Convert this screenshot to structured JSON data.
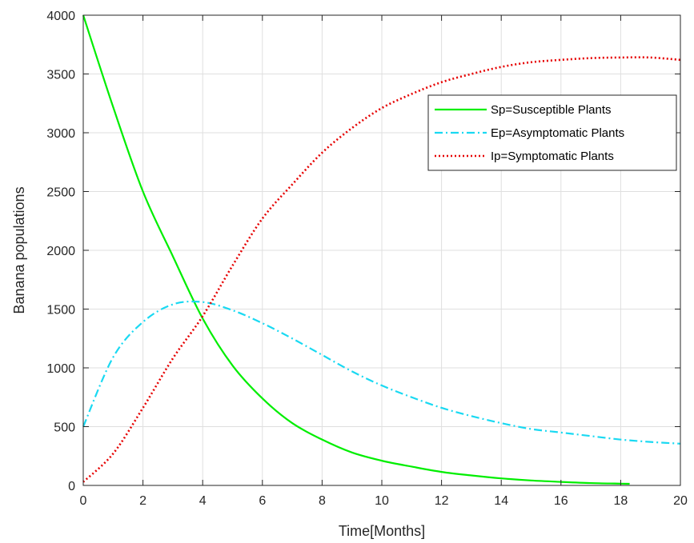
{
  "chart_data": {
    "type": "line",
    "title": "",
    "xlabel": "Time[Months]",
    "ylabel": "Banana populations",
    "xlim": [
      0,
      20
    ],
    "ylim": [
      0,
      4000
    ],
    "xticks": [
      0,
      2,
      4,
      6,
      8,
      10,
      12,
      14,
      16,
      18,
      20
    ],
    "yticks": [
      0,
      500,
      1000,
      1500,
      2000,
      2500,
      3000,
      3500,
      4000
    ],
    "grid": true,
    "legend_position": "top-right",
    "x": [
      0,
      1,
      2,
      3,
      4,
      5,
      6,
      7,
      8,
      9,
      10,
      11,
      12,
      13,
      14,
      15,
      16,
      17,
      18,
      19,
      20
    ],
    "series": [
      {
        "name": "Sp=Susceptible Plants",
        "color": "#00ee00",
        "style": "solid",
        "x_end": 18.3,
        "values": [
          4000,
          3220,
          2500,
          1950,
          1420,
          1020,
          740,
          530,
          390,
          280,
          210,
          160,
          115,
          85,
          60,
          42,
          30,
          20,
          15,
          10,
          8
        ]
      },
      {
        "name": "Ep=Asymptomatic Plants",
        "color": "#19d9f2",
        "style": "dashdot",
        "values": [
          500,
          1090,
          1390,
          1540,
          1560,
          1490,
          1380,
          1250,
          1110,
          970,
          850,
          750,
          660,
          590,
          530,
          480,
          450,
          420,
          390,
          370,
          355
        ]
      },
      {
        "name": "Ip=Symptomatic Plants",
        "color": "#e60000",
        "style": "dotted",
        "values": [
          30,
          270,
          660,
          1080,
          1440,
          1870,
          2270,
          2560,
          2830,
          3040,
          3210,
          3330,
          3430,
          3500,
          3560,
          3600,
          3620,
          3635,
          3640,
          3640,
          3620
        ]
      }
    ]
  }
}
